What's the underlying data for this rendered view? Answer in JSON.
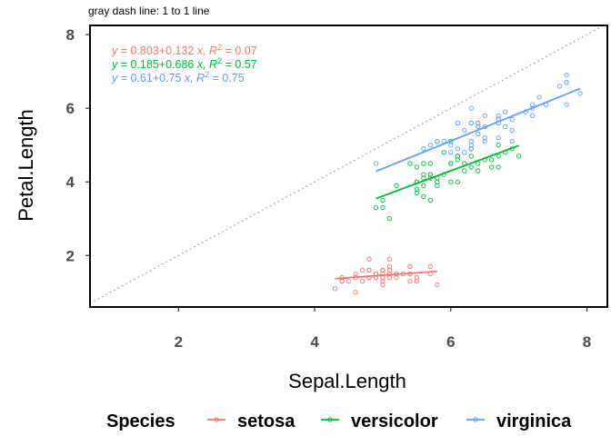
{
  "chart_data": {
    "type": "scatter",
    "title": "",
    "subtitle": "gray dash line: 1 to 1 line",
    "xlabel": "Sepal.Length",
    "ylabel": "Petal.Length",
    "xlim": [
      0.7,
      8.3
    ],
    "ylim": [
      0.6,
      8.25
    ],
    "x_ticks": [
      2,
      4,
      6,
      8
    ],
    "y_ticks": [
      2,
      4,
      6,
      8
    ],
    "grid": false,
    "legend_position": "bottom",
    "legend_title": "Species",
    "reference_line": {
      "slope": 1,
      "intercept": 0,
      "style": "dotted",
      "color": "#999999"
    },
    "series": [
      {
        "name": "setosa",
        "color": "#F8766D",
        "equation": {
          "y": "y",
          "eq": " = 0.803+0.132 ",
          "x": "x",
          "r": ", R",
          "sup": "2",
          "val": " = 0.07"
        },
        "fit": {
          "intercept": 0.803,
          "slope": 0.132,
          "x_range": [
            4.3,
            5.8
          ]
        },
        "points": [
          [
            5.1,
            1.4
          ],
          [
            4.9,
            1.4
          ],
          [
            4.7,
            1.3
          ],
          [
            4.6,
            1.5
          ],
          [
            5.0,
            1.4
          ],
          [
            5.4,
            1.7
          ],
          [
            4.6,
            1.4
          ],
          [
            5.0,
            1.5
          ],
          [
            4.4,
            1.4
          ],
          [
            4.9,
            1.5
          ],
          [
            5.4,
            1.5
          ],
          [
            4.8,
            1.6
          ],
          [
            4.8,
            1.4
          ],
          [
            4.3,
            1.1
          ],
          [
            5.8,
            1.2
          ],
          [
            5.7,
            1.5
          ],
          [
            5.4,
            1.3
          ],
          [
            5.1,
            1.4
          ],
          [
            5.7,
            1.7
          ],
          [
            5.1,
            1.5
          ],
          [
            5.4,
            1.7
          ],
          [
            5.1,
            1.5
          ],
          [
            4.6,
            1.0
          ],
          [
            5.1,
            1.7
          ],
          [
            4.8,
            1.9
          ],
          [
            5.0,
            1.6
          ],
          [
            5.0,
            1.6
          ],
          [
            5.2,
            1.5
          ],
          [
            5.2,
            1.4
          ],
          [
            4.7,
            1.6
          ],
          [
            4.8,
            1.6
          ],
          [
            5.4,
            1.5
          ],
          [
            5.2,
            1.5
          ],
          [
            5.5,
            1.4
          ],
          [
            4.9,
            1.5
          ],
          [
            5.0,
            1.2
          ],
          [
            5.5,
            1.3
          ],
          [
            4.9,
            1.4
          ],
          [
            4.4,
            1.3
          ],
          [
            5.1,
            1.5
          ],
          [
            5.0,
            1.3
          ],
          [
            4.5,
            1.3
          ],
          [
            4.4,
            1.3
          ],
          [
            5.0,
            1.6
          ],
          [
            5.1,
            1.9
          ],
          [
            4.8,
            1.4
          ],
          [
            5.1,
            1.6
          ],
          [
            4.6,
            1.4
          ],
          [
            5.3,
            1.5
          ],
          [
            5.0,
            1.4
          ]
        ]
      },
      {
        "name": "versicolor",
        "color": "#00BA38",
        "equation": {
          "y": "y",
          "eq": " = 0.185+0.686 ",
          "x": "x",
          "r": ", R",
          "sup": "2",
          "val": " = 0.57"
        },
        "fit": {
          "intercept": 0.185,
          "slope": 0.686,
          "x_range": [
            4.9,
            7.0
          ]
        },
        "points": [
          [
            7.0,
            4.7
          ],
          [
            6.4,
            4.5
          ],
          [
            6.9,
            4.9
          ],
          [
            5.5,
            4.0
          ],
          [
            6.5,
            4.6
          ],
          [
            5.7,
            4.5
          ],
          [
            6.3,
            4.7
          ],
          [
            4.9,
            3.3
          ],
          [
            6.6,
            4.6
          ],
          [
            5.2,
            3.9
          ],
          [
            5.0,
            3.5
          ],
          [
            5.9,
            4.2
          ],
          [
            6.0,
            4.0
          ],
          [
            6.1,
            4.7
          ],
          [
            5.6,
            3.6
          ],
          [
            6.7,
            4.4
          ],
          [
            5.6,
            4.5
          ],
          [
            5.8,
            4.1
          ],
          [
            6.2,
            4.5
          ],
          [
            5.6,
            3.9
          ],
          [
            5.9,
            4.8
          ],
          [
            6.1,
            4.0
          ],
          [
            6.3,
            4.9
          ],
          [
            6.1,
            4.7
          ],
          [
            6.4,
            4.3
          ],
          [
            6.6,
            4.4
          ],
          [
            6.8,
            4.8
          ],
          [
            6.7,
            5.0
          ],
          [
            6.0,
            4.5
          ],
          [
            5.7,
            3.5
          ],
          [
            5.5,
            3.8
          ],
          [
            5.5,
            3.7
          ],
          [
            5.8,
            3.9
          ],
          [
            6.0,
            5.1
          ],
          [
            5.4,
            4.5
          ],
          [
            6.0,
            4.5
          ],
          [
            6.7,
            4.7
          ],
          [
            6.3,
            4.4
          ],
          [
            5.6,
            4.1
          ],
          [
            5.5,
            4.0
          ],
          [
            5.5,
            4.4
          ],
          [
            6.1,
            4.6
          ],
          [
            5.8,
            4.0
          ],
          [
            5.0,
            3.3
          ],
          [
            5.6,
            4.2
          ],
          [
            5.7,
            4.2
          ],
          [
            5.7,
            4.2
          ],
          [
            6.2,
            4.3
          ],
          [
            5.1,
            3.0
          ],
          [
            5.7,
            4.1
          ]
        ]
      },
      {
        "name": "virginica",
        "color": "#619CFF",
        "equation": {
          "y": "y",
          "eq": " = 0.61+0.75 ",
          "x": "x",
          "r": ", R",
          "sup": "2",
          "val": " = 0.75"
        },
        "fit": {
          "intercept": 0.61,
          "slope": 0.75,
          "x_range": [
            4.9,
            7.9
          ]
        },
        "points": [
          [
            6.3,
            6.0
          ],
          [
            5.8,
            5.1
          ],
          [
            7.1,
            5.9
          ],
          [
            6.3,
            5.6
          ],
          [
            6.5,
            5.8
          ],
          [
            7.6,
            6.6
          ],
          [
            4.9,
            4.5
          ],
          [
            7.3,
            6.3
          ],
          [
            6.7,
            5.8
          ],
          [
            7.2,
            6.1
          ],
          [
            6.5,
            5.1
          ],
          [
            6.4,
            5.3
          ],
          [
            6.8,
            5.5
          ],
          [
            5.7,
            5.0
          ],
          [
            5.8,
            5.1
          ],
          [
            6.4,
            5.3
          ],
          [
            6.5,
            5.5
          ],
          [
            7.7,
            6.7
          ],
          [
            7.7,
            6.9
          ],
          [
            6.0,
            5.0
          ],
          [
            6.9,
            5.7
          ],
          [
            5.6,
            4.9
          ],
          [
            7.7,
            6.7
          ],
          [
            6.3,
            4.9
          ],
          [
            6.7,
            5.7
          ],
          [
            7.2,
            6.0
          ],
          [
            6.2,
            4.8
          ],
          [
            6.1,
            4.9
          ],
          [
            6.4,
            5.6
          ],
          [
            7.2,
            5.8
          ],
          [
            7.4,
            6.1
          ],
          [
            7.9,
            6.4
          ],
          [
            6.4,
            5.6
          ],
          [
            6.3,
            5.1
          ],
          [
            6.1,
            5.6
          ],
          [
            7.7,
            6.1
          ],
          [
            6.3,
            5.6
          ],
          [
            6.4,
            5.5
          ],
          [
            6.0,
            4.8
          ],
          [
            6.9,
            5.4
          ],
          [
            6.7,
            5.6
          ],
          [
            6.9,
            5.1
          ],
          [
            5.8,
            5.1
          ],
          [
            6.8,
            5.9
          ],
          [
            6.7,
            5.7
          ],
          [
            6.7,
            5.2
          ],
          [
            6.3,
            5.0
          ],
          [
            6.5,
            5.2
          ],
          [
            6.2,
            5.4
          ],
          [
            5.9,
            5.1
          ]
        ]
      }
    ]
  }
}
